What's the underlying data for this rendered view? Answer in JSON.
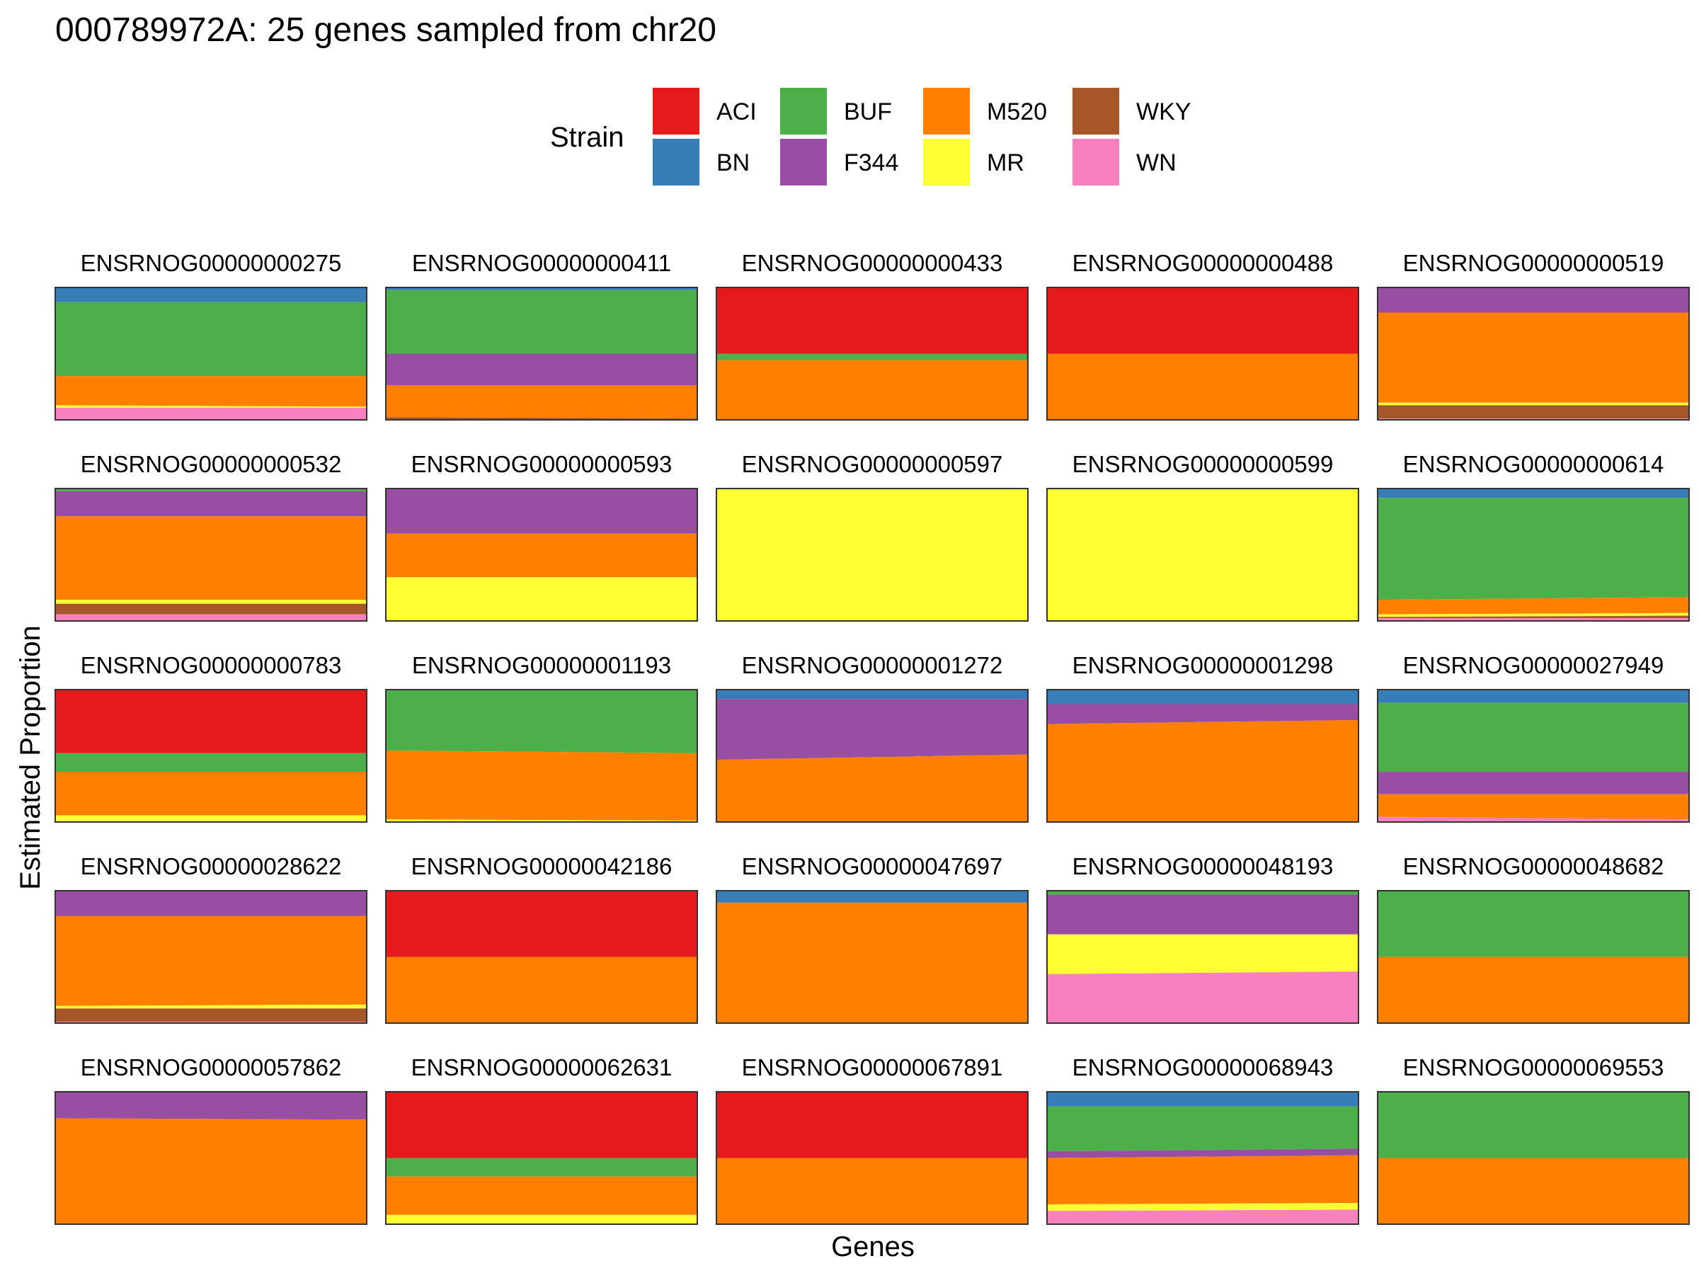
{
  "chart_data": {
    "type": "area",
    "title": "000789972A: 25 genes sampled from chr20",
    "xlabel": "Genes",
    "ylabel": "Estimated Proportion",
    "ylim": [
      0,
      1
    ],
    "legend": {
      "title": "Strain",
      "placement": "top",
      "entries": [
        {
          "name": "ACI",
          "color": "#E41A1C"
        },
        {
          "name": "BN",
          "color": "#377EB8"
        },
        {
          "name": "BUF",
          "color": "#4DAF4A"
        },
        {
          "name": "F344",
          "color": "#984EA3"
        },
        {
          "name": "M520",
          "color": "#FF7F00"
        },
        {
          "name": "MR",
          "color": "#FFFF33"
        },
        {
          "name": "WKY",
          "color": "#A65628"
        },
        {
          "name": "WN",
          "color": "#F781BF"
        }
      ]
    },
    "stack_order_top_to_bottom": [
      "ACI",
      "BN",
      "BUF",
      "F344",
      "M520",
      "MR",
      "WKY",
      "WN"
    ],
    "panels": [
      {
        "gene": "ENSRNOG00000000275",
        "start": {
          "BN": 0.11,
          "BUF": 0.56,
          "M520": 0.22,
          "MR": 0.02,
          "WN": 0.09
        },
        "end": {
          "BN": 0.11,
          "BUF": 0.56,
          "M520": 0.23,
          "MR": 0.01,
          "WN": 0.09
        }
      },
      {
        "gene": "ENSRNOG00000000411",
        "start": {
          "BN": 0.02,
          "BUF": 0.48,
          "F344": 0.24,
          "M520": 0.24,
          "WKY": 0.02
        },
        "end": {
          "BN": 0.02,
          "BUF": 0.48,
          "F344": 0.24,
          "M520": 0.25,
          "WKY": 0.01
        }
      },
      {
        "gene": "ENSRNOG00000000433",
        "start": {
          "ACI": 0.5,
          "BUF": 0.05,
          "M520": 0.45
        },
        "end": {
          "ACI": 0.5,
          "BUF": 0.05,
          "M520": 0.45
        }
      },
      {
        "gene": "ENSRNOG00000000488",
        "start": {
          "ACI": 0.5,
          "M520": 0.5
        },
        "end": {
          "ACI": 0.5,
          "M520": 0.5
        }
      },
      {
        "gene": "ENSRNOG00000000519",
        "start": {
          "F344": 0.19,
          "M520": 0.68,
          "MR": 0.02,
          "WKY": 0.1,
          "WN": 0.01
        },
        "end": {
          "F344": 0.19,
          "M520": 0.68,
          "MR": 0.02,
          "WKY": 0.1,
          "WN": 0.01
        }
      },
      {
        "gene": "ENSRNOG00000000532",
        "start": {
          "BUF": 0.02,
          "F344": 0.19,
          "M520": 0.63,
          "MR": 0.03,
          "WKY": 0.08,
          "WN": 0.05
        },
        "end": {
          "BUF": 0.02,
          "F344": 0.19,
          "M520": 0.63,
          "MR": 0.03,
          "WKY": 0.08,
          "WN": 0.05
        }
      },
      {
        "gene": "ENSRNOG00000000593",
        "start": {
          "F344": 0.34,
          "M520": 0.33,
          "MR": 0.33
        },
        "end": {
          "F344": 0.34,
          "M520": 0.33,
          "MR": 0.33
        }
      },
      {
        "gene": "ENSRNOG00000000597",
        "start": {
          "MR": 1.0
        },
        "end": {
          "MR": 1.0
        }
      },
      {
        "gene": "ENSRNOG00000000599",
        "start": {
          "MR": 1.0
        },
        "end": {
          "MR": 1.0
        }
      },
      {
        "gene": "ENSRNOG00000000614",
        "start": {
          "BN": 0.07,
          "BUF": 0.77,
          "M520": 0.11,
          "MR": 0.02,
          "WKY": 0.01,
          "WN": 0.02
        },
        "end": {
          "BN": 0.07,
          "BUF": 0.75,
          "M520": 0.12,
          "MR": 0.02,
          "WKY": 0.02,
          "WN": 0.02
        }
      },
      {
        "gene": "ENSRNOG00000000783",
        "start": {
          "ACI": 0.48,
          "BUF": 0.14,
          "M520": 0.33,
          "MR": 0.05
        },
        "end": {
          "ACI": 0.48,
          "BUF": 0.14,
          "M520": 0.33,
          "MR": 0.05
        }
      },
      {
        "gene": "ENSRNOG00000001193",
        "start": {
          "BUF": 0.46,
          "M520": 0.52,
          "MR": 0.02
        },
        "end": {
          "BUF": 0.48,
          "M520": 0.51,
          "MR": 0.01
        }
      },
      {
        "gene": "ENSRNOG00000001272",
        "start": {
          "BN": 0.07,
          "F344": 0.46,
          "M520": 0.47
        },
        "end": {
          "BN": 0.07,
          "F344": 0.42,
          "M520": 0.51
        }
      },
      {
        "gene": "ENSRNOG00000001298",
        "start": {
          "BN": 0.11,
          "F344": 0.15,
          "M520": 0.74
        },
        "end": {
          "BN": 0.11,
          "F344": 0.12,
          "M520": 0.77
        }
      },
      {
        "gene": "ENSRNOG00000027949",
        "start": {
          "BN": 0.1,
          "BUF": 0.52,
          "F344": 0.17,
          "M520": 0.17,
          "WN": 0.04
        },
        "end": {
          "BN": 0.1,
          "BUF": 0.52,
          "F344": 0.17,
          "M520": 0.19,
          "WN": 0.02
        }
      },
      {
        "gene": "ENSRNOG00000028622",
        "start": {
          "F344": 0.19,
          "M520": 0.68,
          "MR": 0.02,
          "WKY": 0.1,
          "WN": 0.01
        },
        "end": {
          "F344": 0.19,
          "M520": 0.67,
          "MR": 0.03,
          "WKY": 0.1,
          "WN": 0.01
        }
      },
      {
        "gene": "ENSRNOG00000042186",
        "start": {
          "ACI": 0.5,
          "M520": 0.5
        },
        "end": {
          "ACI": 0.5,
          "M520": 0.5
        }
      },
      {
        "gene": "ENSRNOG00000047697",
        "start": {
          "BN": 0.09,
          "M520": 0.91
        },
        "end": {
          "BN": 0.09,
          "M520": 0.91
        }
      },
      {
        "gene": "ENSRNOG00000048193",
        "start": {
          "BUF": 0.03,
          "F344": 0.3,
          "MR": 0.3,
          "WN": 0.37
        },
        "end": {
          "BUF": 0.03,
          "F344": 0.3,
          "MR": 0.28,
          "WN": 0.39
        }
      },
      {
        "gene": "ENSRNOG00000048682",
        "start": {
          "BUF": 0.5,
          "M520": 0.5
        },
        "end": {
          "BUF": 0.5,
          "M520": 0.5
        }
      },
      {
        "gene": "ENSRNOG00000057862",
        "start": {
          "F344": 0.2,
          "M520": 0.8
        },
        "end": {
          "F344": 0.21,
          "M520": 0.79
        }
      },
      {
        "gene": "ENSRNOG00000062631",
        "start": {
          "ACI": 0.5,
          "BUF": 0.14,
          "M520": 0.29,
          "MR": 0.07
        },
        "end": {
          "ACI": 0.5,
          "BUF": 0.14,
          "M520": 0.29,
          "MR": 0.07
        }
      },
      {
        "gene": "ENSRNOG00000067891",
        "start": {
          "ACI": 0.5,
          "M520": 0.5
        },
        "end": {
          "ACI": 0.5,
          "M520": 0.5
        }
      },
      {
        "gene": "ENSRNOG00000068943",
        "start": {
          "BN": 0.11,
          "BUF": 0.34,
          "F344": 0.05,
          "M520": 0.35,
          "MR": 0.05,
          "WN": 0.1
        },
        "end": {
          "BN": 0.11,
          "BUF": 0.32,
          "F344": 0.05,
          "M520": 0.36,
          "MR": 0.05,
          "WN": 0.11
        }
      },
      {
        "gene": "ENSRNOG00000069553",
        "start": {
          "BUF": 0.5,
          "M520": 0.5
        },
        "end": {
          "BUF": 0.5,
          "M520": 0.5
        }
      }
    ]
  }
}
